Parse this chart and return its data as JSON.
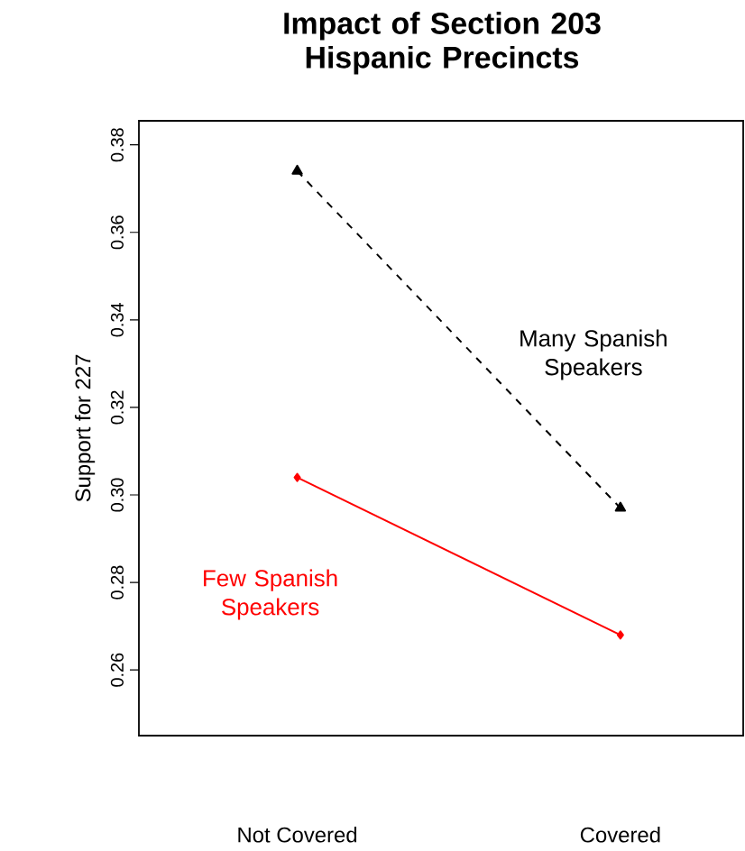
{
  "chart_data": {
    "type": "line",
    "title": "Impact of Section 203 Hispanic Precincts",
    "ylabel": "Support for 227",
    "categories": [
      "Not Covered",
      "Covered"
    ],
    "ylim": [
      0.245,
      0.3855
    ],
    "yticks": [
      0.26,
      0.28,
      {
        "value": 0.3,
        "label": "0.30"
      },
      0.32,
      0.34,
      0.36,
      0.38
    ],
    "legend": false,
    "grid": false,
    "series": [
      {
        "name": "Many Spanish Speakers",
        "color": "#000000",
        "values": [
          0.374,
          0.297
        ],
        "marker": "triangle",
        "line_style": "dashed"
      },
      {
        "name": "Few Spanish Speakers",
        "color": "#ff0000",
        "values": [
          0.304,
          0.268
        ],
        "marker": "diamond",
        "line_style": "solid"
      }
    ]
  }
}
